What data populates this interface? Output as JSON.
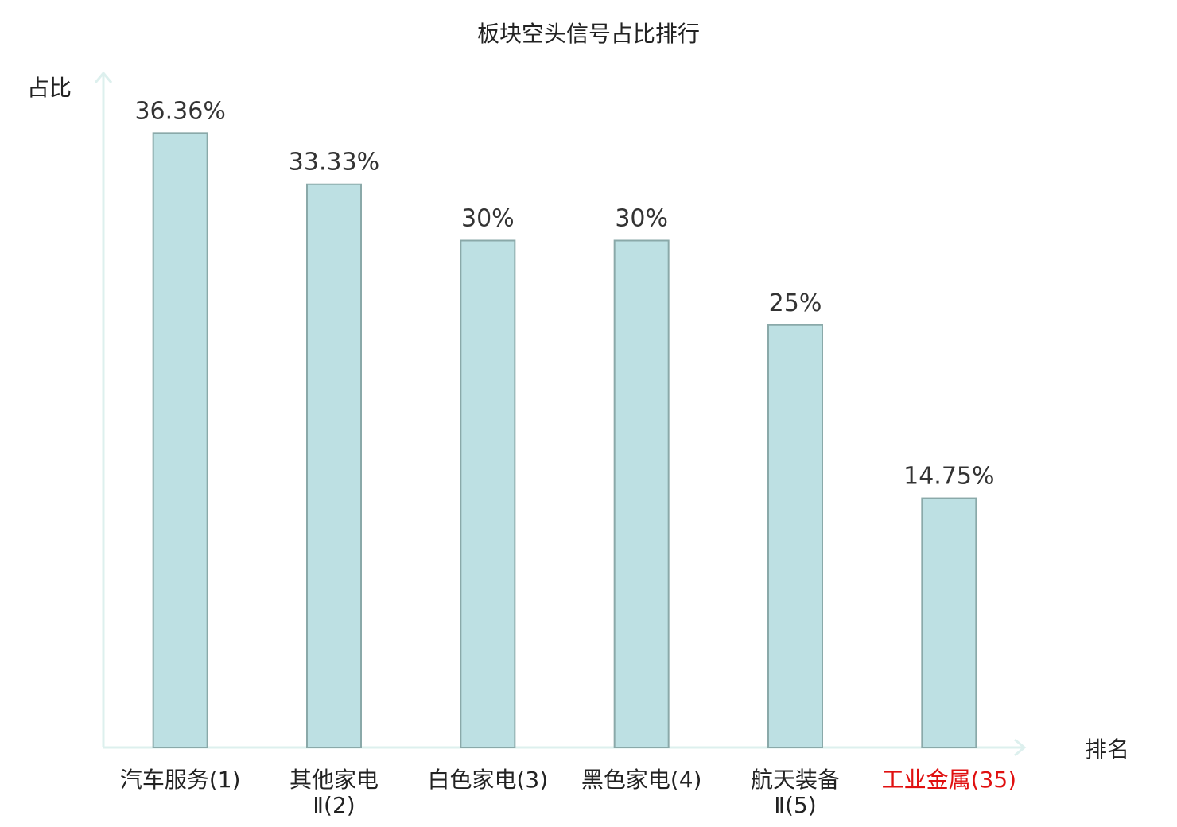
{
  "chart_data": {
    "type": "bar",
    "title": "板块空头信号占比排行",
    "y_label": "占比",
    "x_label": "排名",
    "categories": [
      "汽车服务(1)",
      "其他家电\nⅡ(2)",
      "白色家电(3)",
      "黑色家电(4)",
      "航天装备\nⅡ(5)",
      "工业金属(35)"
    ],
    "values": [
      36.36,
      33.33,
      30,
      30,
      25,
      14.75
    ],
    "value_labels": [
      "36.36%",
      "33.33%",
      "30%",
      "30%",
      "25%",
      "14.75%"
    ],
    "color": "#bde0e3",
    "edge_color": "#8aa9a9",
    "category_label_colors": [
      "#222222",
      "#222222",
      "#222222",
      "#222222",
      "#222222",
      "#e01010"
    ],
    "ylim": [
      0,
      40
    ]
  }
}
